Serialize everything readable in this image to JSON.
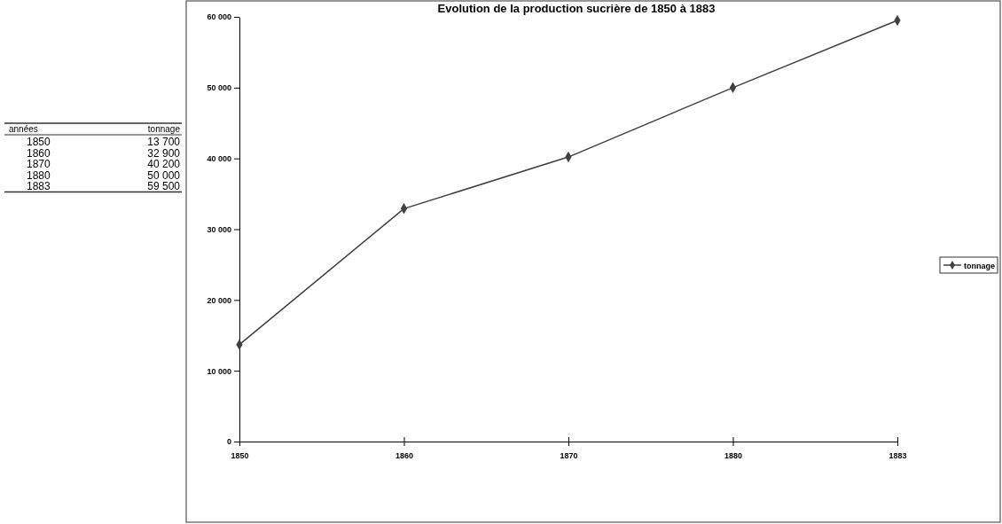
{
  "chart_data": {
    "type": "line",
    "title": "Evolution de la production sucrière de 1850 à 1883",
    "annotations": [
      "années",
      "13 700",
      "32 900",
      "40 200",
      "50 000",
      "59 500"
    ],
    "categories": [
      "1850",
      "1860",
      "1870",
      "1880",
      "1883"
    ],
    "series": [
      {
        "name": "tonnage",
        "color": "#404040",
        "values": [
          13700,
          32900,
          40200,
          50000,
          59500
        ]
      }
    ],
    "ylim": [
      0,
      60000
    ],
    "yticks": [
      {
        "value": 0,
        "label": "0"
      },
      {
        "value": 10000,
        "label": "10 000"
      },
      {
        "value": 20000,
        "label": "20 000"
      },
      {
        "value": 30000,
        "label": "30 000"
      },
      {
        "value": 40000,
        "label": "40 000"
      },
      {
        "value": 50000,
        "label": "50 000"
      },
      {
        "value": 60000,
        "label": "60 000"
      }
    ],
    "marker": "diamond",
    "line_style": "solid",
    "legend": "right",
    "grid": false
  }
}
